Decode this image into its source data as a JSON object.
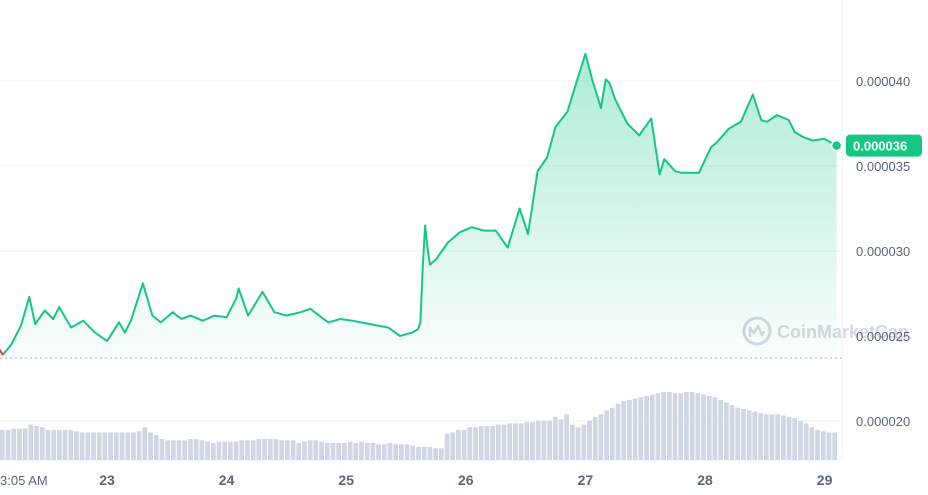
{
  "chart_data": {
    "type": "line",
    "watermark": "CoinMarketCap",
    "colors": {
      "up_line": "#16c784",
      "down_line": "#ea3943",
      "area_top": "#16c784",
      "volume": "#cfd6e4",
      "grid": "#eff2f5",
      "tick_text": "#58667e"
    },
    "y_axis": {
      "ticks": [
        "0.000020",
        "0.000025",
        "0.000030",
        "0.000035",
        "0.000040"
      ],
      "tick_values": [
        2e-05,
        2.5e-05,
        3e-05,
        3.5e-05,
        4e-05
      ]
    },
    "x_axis": {
      "ticks": [
        "3:05 AM",
        "23",
        "24",
        "25",
        "26",
        "27",
        "28",
        "29"
      ],
      "tick_dates": [
        22.13,
        23,
        24,
        25,
        26,
        27,
        28,
        29
      ]
    },
    "current_price": {
      "label": "0.000036",
      "value": 3.62e-05
    },
    "baseline_value": 2.37e-05,
    "series": [
      {
        "x": [
          22.0,
          22.08,
          22.13,
          22.2,
          22.28,
          22.35,
          22.4,
          22.48,
          22.55,
          22.6,
          22.7,
          22.8,
          22.9,
          23.0,
          23.1,
          23.15,
          23.2,
          23.3,
          23.38,
          23.45,
          23.55,
          23.62,
          23.7,
          23.8,
          23.9,
          24.0,
          24.08,
          24.1,
          24.18,
          24.3,
          24.4,
          24.5,
          24.62,
          24.7,
          24.85,
          24.95,
          25.05,
          25.2,
          25.35,
          25.45,
          25.55,
          25.6,
          25.62,
          25.64,
          25.66,
          25.68,
          25.7,
          25.75,
          25.85,
          25.95,
          26.05,
          26.15,
          26.25,
          26.35,
          26.45,
          26.52,
          26.6,
          26.68,
          26.75,
          26.85,
          26.92,
          27.0,
          27.06,
          27.1,
          27.13,
          27.17,
          27.2,
          27.25,
          27.3,
          27.35,
          27.45,
          27.55,
          27.62,
          27.66,
          27.7,
          27.75,
          27.8,
          27.87,
          27.95,
          28.05,
          28.1,
          28.2,
          28.3,
          28.4,
          28.47,
          28.52,
          28.6,
          28.7,
          28.75,
          28.82,
          28.9,
          29.0,
          29.07,
          29.1
        ],
        "y": [
          2.38e-05,
          2.44e-05,
          2.39e-05,
          2.45e-05,
          2.56e-05,
          2.73e-05,
          2.57e-05,
          2.65e-05,
          2.6e-05,
          2.67e-05,
          2.55e-05,
          2.59e-05,
          2.52e-05,
          2.47e-05,
          2.58e-05,
          2.52e-05,
          2.59e-05,
          2.81e-05,
          2.62e-05,
          2.58e-05,
          2.64e-05,
          2.6e-05,
          2.62e-05,
          2.59e-05,
          2.62e-05,
          2.61e-05,
          2.72e-05,
          2.78e-05,
          2.62e-05,
          2.76e-05,
          2.64e-05,
          2.62e-05,
          2.64e-05,
          2.66e-05,
          2.58e-05,
          2.6e-05,
          2.59e-05,
          2.57e-05,
          2.55e-05,
          2.5e-05,
          2.52e-05,
          2.54e-05,
          2.58e-05,
          2.9e-05,
          3.15e-05,
          3.02e-05,
          2.92e-05,
          2.95e-05,
          3.05e-05,
          3.11e-05,
          3.14e-05,
          3.12e-05,
          3.12e-05,
          3.02e-05,
          3.25e-05,
          3.1e-05,
          3.47e-05,
          3.55e-05,
          3.73e-05,
          3.82e-05,
          3.98e-05,
          4.16e-05,
          4e-05,
          3.91e-05,
          3.84e-05,
          4.01e-05,
          3.99e-05,
          3.89e-05,
          3.82e-05,
          3.75e-05,
          3.68e-05,
          3.78e-05,
          3.45e-05,
          3.54e-05,
          3.51e-05,
          3.47e-05,
          3.46e-05,
          3.46e-05,
          3.46e-05,
          3.61e-05,
          3.64e-05,
          3.72e-05,
          3.76e-05,
          3.92e-05,
          3.77e-05,
          3.76e-05,
          3.8e-05,
          3.77e-05,
          3.7e-05,
          3.67e-05,
          3.65e-05,
          3.66e-05,
          3.63e-05,
          3.62e-05
        ]
      }
    ],
    "volume": [
      2.3,
      2.3,
      2.4,
      2.4,
      2.4,
      2.7,
      2.6,
      2.5,
      2.3,
      2.3,
      2.3,
      2.3,
      2.3,
      2.2,
      2.1,
      2.1,
      2.1,
      2.1,
      2.1,
      2.1,
      2.1,
      2.1,
      2.1,
      2.1,
      2.2,
      2.5,
      2.1,
      1.9,
      1.6,
      1.5,
      1.5,
      1.5,
      1.5,
      1.6,
      1.6,
      1.5,
      1.4,
      1.3,
      1.4,
      1.4,
      1.4,
      1.4,
      1.5,
      1.5,
      1.5,
      1.6,
      1.6,
      1.6,
      1.6,
      1.5,
      1.5,
      1.5,
      1.3,
      1.4,
      1.5,
      1.5,
      1.4,
      1.3,
      1.3,
      1.3,
      1.3,
      1.4,
      1.3,
      1.4,
      1.3,
      1.3,
      1.2,
      1.2,
      1.3,
      1.2,
      1.2,
      1.2,
      1.1,
      1.0,
      1.0,
      1.0,
      0.9,
      0.9,
      2.0,
      2.1,
      2.3,
      2.3,
      2.5,
      2.5,
      2.6,
      2.6,
      2.6,
      2.7,
      2.7,
      2.8,
      2.8,
      2.8,
      2.9,
      2.9,
      3.0,
      3.0,
      3.0,
      3.3,
      3.1,
      3.5,
      2.7,
      2.5,
      2.7,
      3.0,
      3.3,
      3.5,
      3.8,
      4.0,
      4.3,
      4.5,
      4.6,
      4.7,
      4.8,
      4.9,
      5.0,
      5.1,
      5.2,
      5.2,
      5.1,
      5.1,
      5.2,
      5.2,
      5.1,
      5.0,
      4.9,
      4.8,
      4.6,
      4.4,
      4.2,
      4.0,
      3.9,
      3.8,
      3.7,
      3.6,
      3.5,
      3.5,
      3.5,
      3.4,
      3.3,
      3.2,
      3.0,
      2.8,
      2.5,
      2.3,
      2.2,
      2.1,
      2.1
    ]
  }
}
